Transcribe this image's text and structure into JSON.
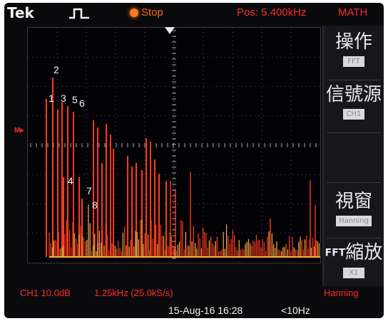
{
  "header": {
    "brand": "Tek",
    "run_status": "Stop",
    "position": "Pos: 5.400kHz",
    "mode": "MATH"
  },
  "colors": {
    "waveform": "#ff3a1a",
    "waveform_hot": "#ffb040",
    "grid": "#8a8a98",
    "text_red": "#ff2a2a",
    "text_white": "#f2f2f2"
  },
  "icons": [
    "pulse-trigger-icon",
    "run-indicator-icon",
    "trigger-position-marker-icon",
    "reference-marker-icon"
  ],
  "ref_marker": "M▸",
  "annotations": [
    "2",
    "1",
    "3",
    "5",
    "6",
    "4",
    "7",
    "8"
  ],
  "side_menu": [
    {
      "title": "操作",
      "value": "FFT"
    },
    {
      "title": "信號源",
      "value": "CH1"
    },
    {
      "title": "視窗",
      "value": "Hanning"
    },
    {
      "prefix": "FFT",
      "title": "縮放",
      "value": "X1"
    }
  ],
  "status": {
    "channel_scale": "CH1 10.0dB",
    "span": "1.25kHz (25.0kS/s)",
    "window": "Hanning",
    "datetime": "15-Aug-16 16:28",
    "frequency": "<10Hz"
  }
}
